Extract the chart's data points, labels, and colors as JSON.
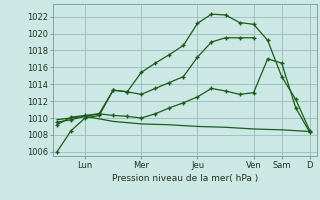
{
  "background_color": "#cce8e4",
  "grid_color": "#99bbbb",
  "line_color": "#1a5c1a",
  "ylabel": "Pression niveau de la mer( hPa )",
  "ylim": [
    1005.5,
    1023.5
  ],
  "yticks": [
    1006,
    1008,
    1010,
    1012,
    1014,
    1016,
    1018,
    1020,
    1022
  ],
  "x_tick_positions": [
    2,
    6,
    10,
    14,
    16,
    18
  ],
  "x_tick_labels": [
    "Lun",
    "Mer",
    "Jeu",
    "Ven",
    "Sam",
    "D"
  ],
  "xlim": [
    -0.3,
    18.5
  ],
  "series1_x": [
    0,
    1,
    2,
    3,
    4,
    5,
    6,
    7,
    8,
    9,
    10,
    11,
    12,
    13,
    14,
    15,
    16,
    17,
    18
  ],
  "series1_y": [
    1006.0,
    1008.5,
    1010.0,
    1010.3,
    1013.3,
    1013.1,
    1015.4,
    1016.5,
    1017.5,
    1018.6,
    1021.2,
    1022.3,
    1022.2,
    1021.3,
    1021.1,
    1019.2,
    1014.9,
    1012.2,
    1008.5
  ],
  "series2_x": [
    0,
    1,
    2,
    3,
    4,
    5,
    6,
    7,
    8,
    9,
    10,
    11,
    12,
    13,
    14
  ],
  "series2_y": [
    1009.2,
    1010.1,
    1010.3,
    1010.5,
    1013.3,
    1013.1,
    1012.8,
    1013.5,
    1014.2,
    1014.9,
    1017.2,
    1019.0,
    1019.5,
    1019.5,
    1019.5
  ],
  "series3_x": [
    0,
    1,
    2,
    3,
    4,
    5,
    6,
    7,
    8,
    9,
    10,
    11,
    12,
    13,
    14,
    15,
    16,
    17,
    18
  ],
  "series3_y": [
    1009.5,
    1009.8,
    1010.2,
    1010.5,
    1010.3,
    1010.2,
    1010.0,
    1010.5,
    1011.2,
    1011.8,
    1012.5,
    1013.5,
    1013.2,
    1012.8,
    1013.0,
    1017.0,
    1016.5,
    1011.2,
    1008.3
  ],
  "series4_x": [
    0,
    2,
    4,
    6,
    8,
    10,
    12,
    14,
    16,
    18
  ],
  "series4_y": [
    1009.8,
    1010.2,
    1009.6,
    1009.3,
    1009.2,
    1009.0,
    1008.9,
    1008.7,
    1008.6,
    1008.4
  ]
}
